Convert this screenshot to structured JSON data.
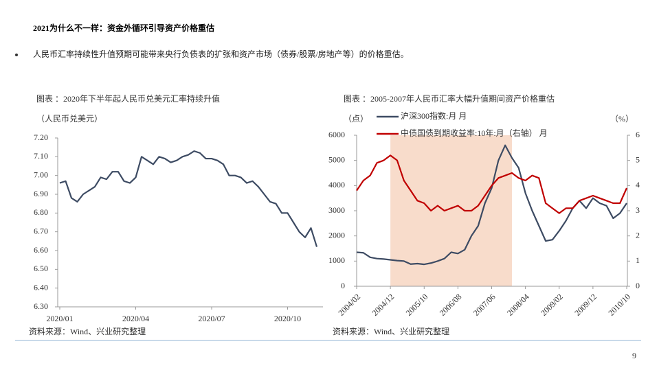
{
  "title": "2021为什么不一样：资金外循环引导资产价格重估",
  "bullet": "人民币汇率持续性升值预期可能带来央行负债表的扩张和资产市场（债券/股票/房地产等）的价格重估。",
  "page_number": "9",
  "chart_data": [
    {
      "type": "line",
      "title": "图表 ：2020年下半年起人民币兑美元汇率持续升值",
      "y_label": "（人民币兑美元）",
      "source": "资料来源：Wind、兴业研究整理",
      "categories": [
        "2020/01",
        null,
        null,
        null,
        null,
        null,
        null,
        null,
        null,
        null,
        null,
        null,
        null,
        "2020/04",
        null,
        null,
        null,
        null,
        null,
        null,
        null,
        null,
        null,
        null,
        null,
        null,
        "2020/07",
        null,
        null,
        null,
        null,
        null,
        null,
        null,
        null,
        null,
        null,
        null,
        null,
        "2020/10",
        null,
        null,
        null,
        null,
        null
      ],
      "series": [
        {
          "name": null,
          "color": "#3d4b63",
          "values": [
            6.96,
            6.97,
            6.88,
            6.86,
            6.9,
            6.92,
            6.94,
            6.99,
            6.98,
            7.02,
            7.02,
            6.97,
            6.96,
            6.99,
            7.1,
            7.08,
            7.06,
            7.1,
            7.09,
            7.07,
            7.08,
            7.1,
            7.11,
            7.13,
            7.12,
            7.09,
            7.09,
            7.08,
            7.06,
            7.0,
            7.0,
            6.99,
            6.96,
            6.97,
            6.94,
            6.9,
            6.86,
            6.85,
            6.8,
            6.8,
            6.75,
            6.7,
            6.67,
            6.72,
            6.62
          ]
        }
      ],
      "ylim": [
        6.3,
        7.2
      ],
      "yticks": [
        {
          "value": 6.3,
          "label": "6.30"
        },
        {
          "value": 6.4,
          "label": "6.40"
        },
        {
          "value": 6.5,
          "label": "6.50"
        },
        {
          "value": 6.6,
          "label": "6.60"
        },
        {
          "value": 6.7,
          "label": "6.70"
        },
        {
          "value": 6.8,
          "label": "6.80"
        },
        {
          "value": 6.9,
          "label": "6.90"
        },
        {
          "value": 7.0,
          "label": "7.00"
        },
        {
          "value": 7.1,
          "label": "7.10"
        },
        {
          "value": 7.2,
          "label": "7.20"
        }
      ],
      "grid": false
    },
    {
      "type": "line",
      "title": "图表 ：2005-2007年人民币汇率大幅升值期间资产价格重估",
      "y_label": "（点）",
      "y2_label": "（%）",
      "source": "资料来源：Wind、兴业研究整理",
      "categories": [
        "2004/02",
        null,
        null,
        null,
        null,
        "2004/12",
        null,
        null,
        null,
        null,
        "2005/10",
        null,
        null,
        null,
        null,
        "2006/08",
        null,
        null,
        null,
        null,
        "2007/06",
        null,
        null,
        null,
        null,
        "2008/04",
        null,
        null,
        null,
        null,
        "2009/02",
        null,
        null,
        null,
        null,
        "2009/12",
        null,
        null,
        null,
        null,
        "2010/10"
      ],
      "highlight": [
        5,
        23
      ],
      "highlight_color": "#f8dccb",
      "series": [
        {
          "name": "沪深300指数:月 月",
          "color": "#3d4b63",
          "values": [
            1350,
            1330,
            1150,
            1100,
            1080,
            1050,
            1020,
            1000,
            880,
            900,
            870,
            920,
            1000,
            1100,
            1350,
            1300,
            1450,
            2000,
            2400,
            3300,
            3900,
            5000,
            5600,
            5100,
            4700,
            3700,
            3000,
            2400,
            1800,
            1850,
            2200,
            2600,
            3100,
            3400,
            3100,
            3500,
            3300,
            3200,
            2700,
            2900,
            3300
          ]
        },
        {
          "name": "中债国债到期收益率:10年:月（右轴） 月",
          "color": "#c00000",
          "axis": "y2",
          "values": [
            3.8,
            4.2,
            4.4,
            4.9,
            5.0,
            5.2,
            5.0,
            4.2,
            3.8,
            3.4,
            3.3,
            3.0,
            3.2,
            3.0,
            3.1,
            3.2,
            3.0,
            3.0,
            3.2,
            3.6,
            4.0,
            4.3,
            4.4,
            4.5,
            4.3,
            4.2,
            4.4,
            4.3,
            3.3,
            3.1,
            2.9,
            3.1,
            3.1,
            3.4,
            3.5,
            3.6,
            3.5,
            3.4,
            3.3,
            3.3,
            3.9
          ]
        }
      ],
      "ylim": [
        0,
        6000
      ],
      "yticks": [
        0,
        1000,
        2000,
        3000,
        4000,
        5000,
        6000
      ],
      "y2lim": [
        0,
        6
      ],
      "y2ticks": [
        0,
        1,
        2,
        3,
        4,
        5,
        6
      ],
      "grid": false
    }
  ]
}
